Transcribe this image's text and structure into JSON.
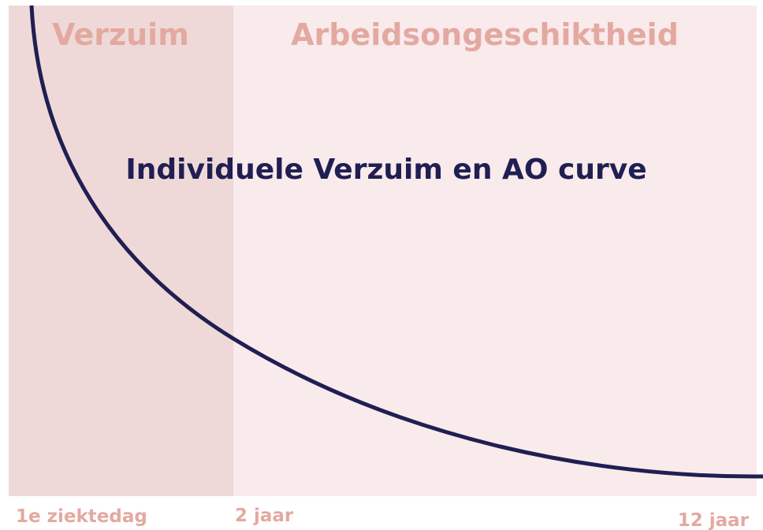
{
  "zones": [
    {
      "label": "Verzuim"
    },
    {
      "label": "Arbeidsongeschiktheid"
    }
  ],
  "title": "Individuele Verzuim en AO curve",
  "axis_labels": [
    "1e ziektedag",
    "2 jaar",
    "12 jaar"
  ]
}
